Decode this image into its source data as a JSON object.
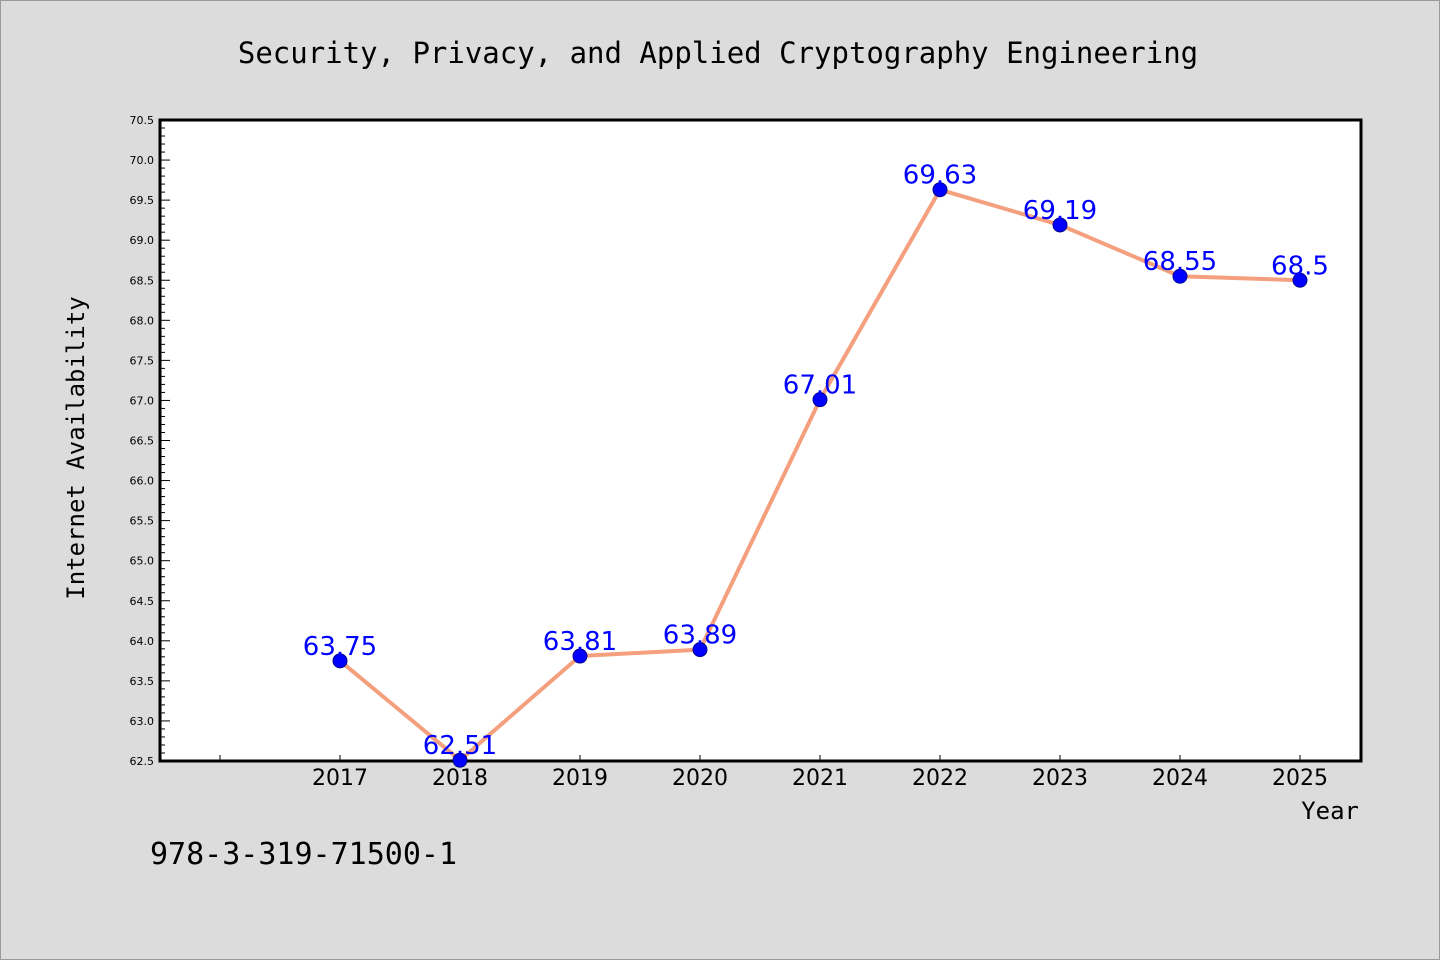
{
  "chart_data": {
    "type": "line",
    "title": "Security, Privacy, and Applied Cryptography Engineering",
    "xlabel": "Year",
    "ylabel": "Internet Availability",
    "categories": [
      "2017",
      "2018",
      "2019",
      "2020",
      "2021",
      "2022",
      "2023",
      "2024",
      "2025"
    ],
    "values": [
      63.75,
      62.51,
      63.81,
      63.89,
      67.01,
      69.63,
      69.19,
      68.55,
      68.5
    ],
    "data_labels": [
      "63.75",
      "62.51",
      "63.81",
      "63.89",
      "67.01",
      "69.63",
      "69.19",
      "68.55",
      "68.5"
    ],
    "ylim": [
      62.5,
      70.5
    ],
    "yticks": [
      "62.5",
      "63.0",
      "63.5",
      "64.0",
      "64.5",
      "65.0",
      "65.5",
      "66.0",
      "66.5",
      "67.0",
      "67.5",
      "68.0",
      "68.5",
      "69.0",
      "69.5",
      "70.0",
      "70.5"
    ],
    "grid": false,
    "legend": "none",
    "colors": {
      "line": "#f4a07e",
      "marker": "#0000ff",
      "data_label": "#0000ff",
      "background": "#dcdcdc",
      "plot_bg": "#ffffff"
    }
  },
  "footer": {
    "isbn": "978-3-319-71500-1"
  }
}
